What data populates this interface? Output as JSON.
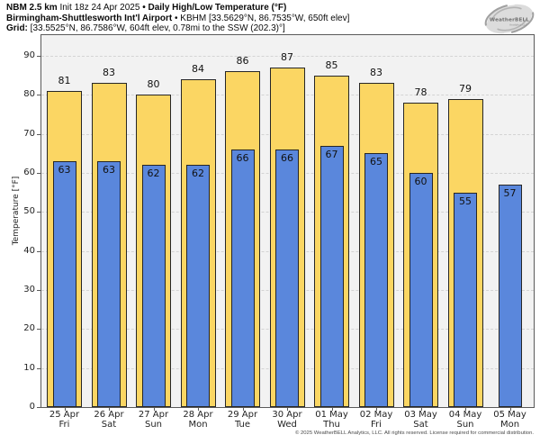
{
  "header": {
    "line1": {
      "model": "NBM 2.5 km",
      "init": " Init 18z 24 Apr 2025 ",
      "product": "• Daily High/Low Temperature (°F)"
    },
    "line2": {
      "station": "Birmingham-Shuttlesworth Int'l Airport",
      "details": " • KBHM [33.5629°N, 86.7535°W, 650ft elev]"
    },
    "line3": {
      "label": "Grid:",
      "details": " [33.5525°N, 86.7586°W, 604ft elev, 0.78mi to the SSW (202.3)°]"
    }
  },
  "logo": {
    "brand": "WeatherBELL",
    "sub": "Analytics LLC"
  },
  "footer": {
    "copyright": "© 2025 WeatherBELL Analytics, LLC. All rights reserved. License required for commercial distribution."
  },
  "chart_data": {
    "type": "bar",
    "title": "Daily High/Low Temperature (°F)",
    "ylabel": "Temperature [°F]",
    "ylim": [
      0,
      95
    ],
    "yticks": [
      0,
      10,
      20,
      30,
      40,
      50,
      60,
      70,
      80,
      90
    ],
    "grid": "horizontal-dashed",
    "categories": [
      {
        "date": "25 Apr",
        "day": "Fri"
      },
      {
        "date": "26 Apr",
        "day": "Sat"
      },
      {
        "date": "27 Apr",
        "day": "Sun"
      },
      {
        "date": "28 Apr",
        "day": "Mon"
      },
      {
        "date": "29 Apr",
        "day": "Tue"
      },
      {
        "date": "30 Apr",
        "day": "Wed"
      },
      {
        "date": "01 May",
        "day": "Thu"
      },
      {
        "date": "02 May",
        "day": "Fri"
      },
      {
        "date": "03 May",
        "day": "Sat"
      },
      {
        "date": "04 May",
        "day": "Sun"
      },
      {
        "date": "05 May",
        "day": "Mon"
      }
    ],
    "series": [
      {
        "name": "High",
        "color": "#fbd663",
        "border": "#262626",
        "values": [
          81,
          83,
          80,
          84,
          86,
          87,
          85,
          83,
          78,
          79,
          null
        ]
      },
      {
        "name": "Low",
        "color": "#5a87dc",
        "border": "#262626",
        "values": [
          63,
          63,
          62,
          62,
          66,
          66,
          67,
          65,
          60,
          55,
          57
        ]
      }
    ]
  }
}
